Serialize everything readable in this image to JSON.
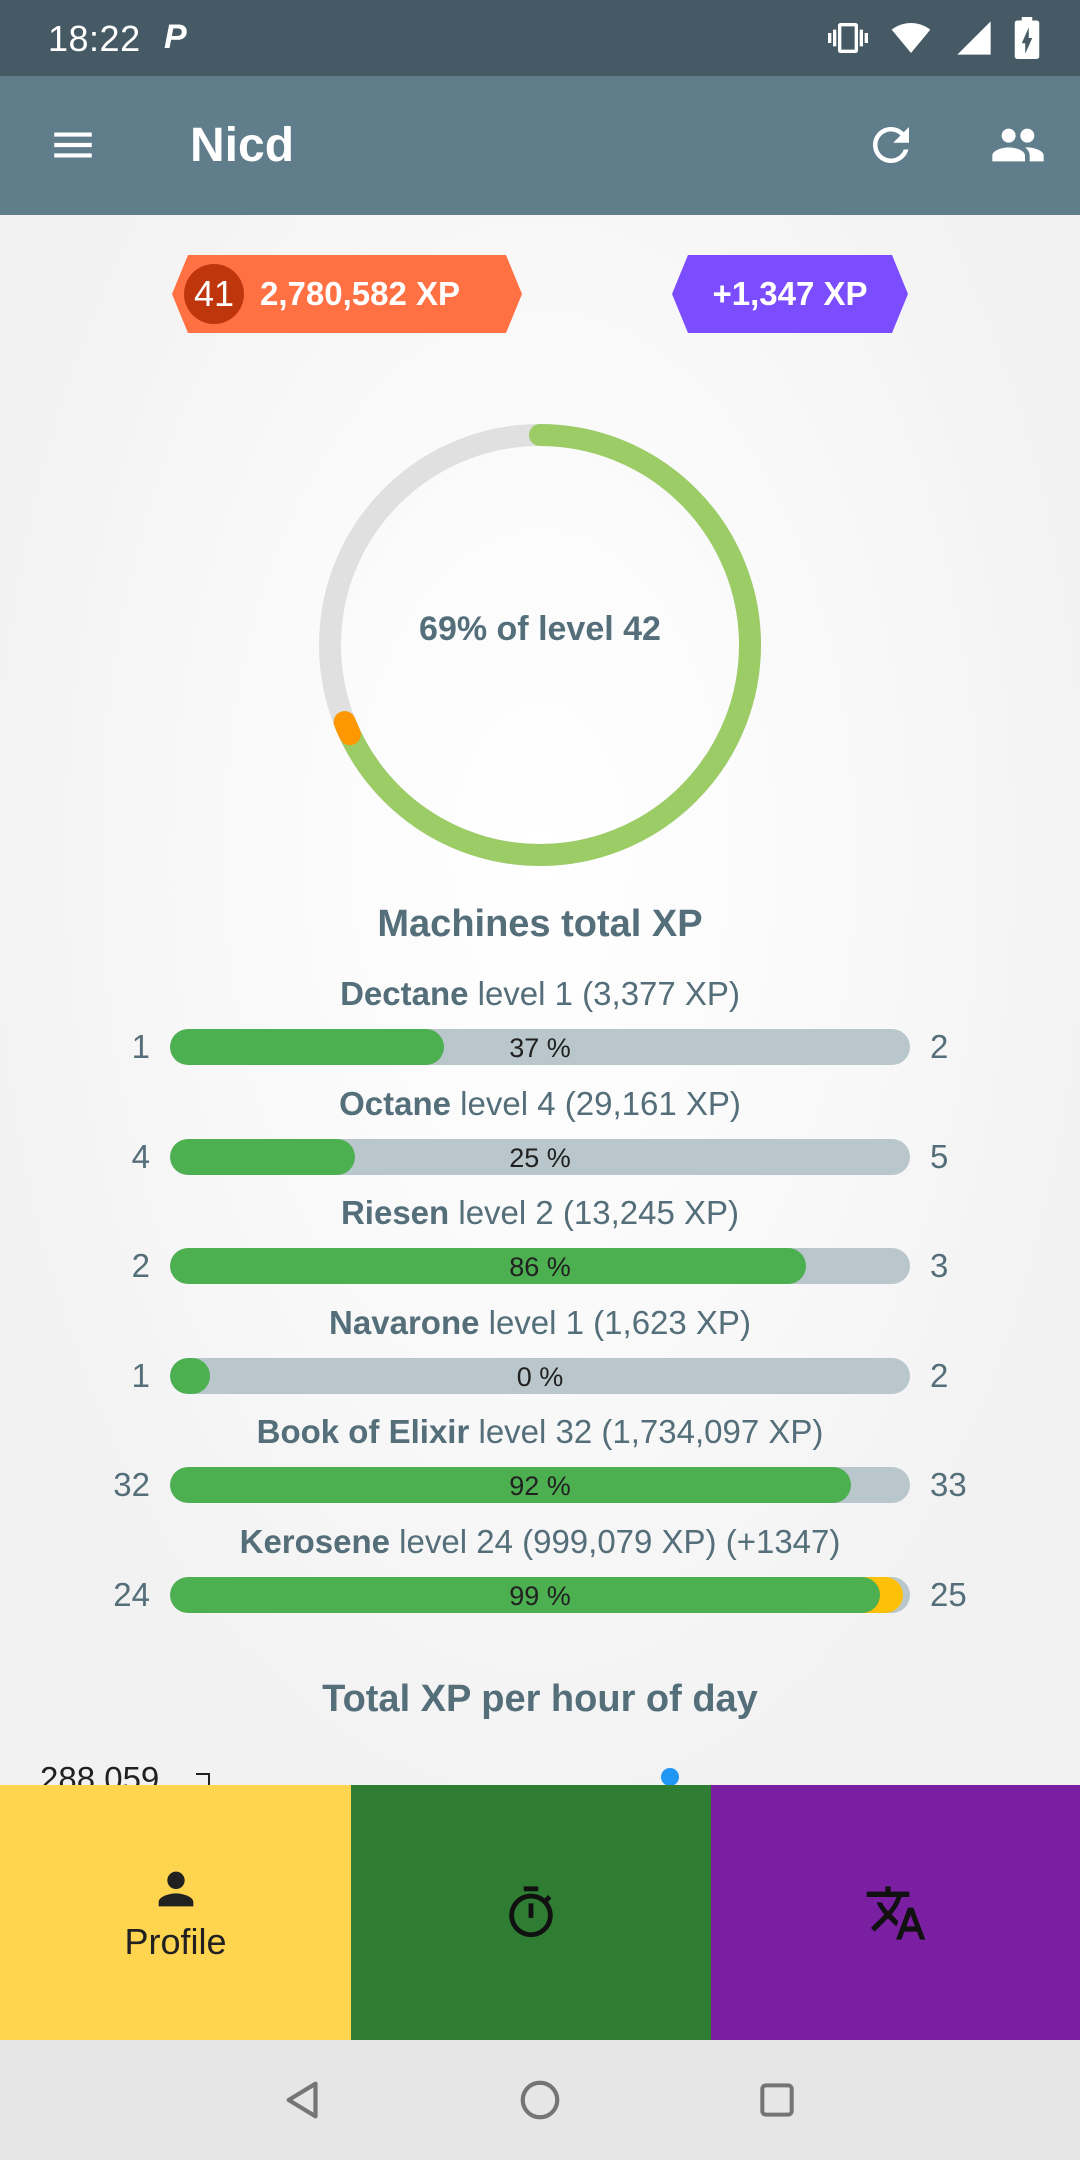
{
  "status_bar": {
    "time": "18:22",
    "notification_icon": "P",
    "icons": [
      "vibrate-icon",
      "wifi-icon",
      "signal-icon",
      "battery-charging-icon"
    ]
  },
  "app_bar": {
    "title": "Nicd",
    "icons": [
      "menu-icon",
      "refresh-icon",
      "people-icon"
    ]
  },
  "xp_summary": {
    "level": "41",
    "total_xp": "2,780,582 XP",
    "gain_xp": "+1,347 XP"
  },
  "progress_ring": {
    "label": "69% of level 42",
    "progress": 0.69,
    "gain_fraction": 0.01
  },
  "machines": {
    "title": "Machines total XP",
    "items": [
      {
        "name": "Dectane",
        "detail": " level 1 (3,377 XP)",
        "from": "1",
        "to": "2",
        "pct_label": "37 %",
        "pct": 37,
        "gain_pct": 0
      },
      {
        "name": "Octane",
        "detail": " level 4 (29,161 XP)",
        "from": "4",
        "to": "5",
        "pct_label": "25 %",
        "pct": 25,
        "gain_pct": 0
      },
      {
        "name": "Riesen",
        "detail": " level 2 (13,245 XP)",
        "from": "2",
        "to": "3",
        "pct_label": "86 %",
        "pct": 86,
        "gain_pct": 0
      },
      {
        "name": "Navarone",
        "detail": " level 1 (1,623 XP)",
        "from": "1",
        "to": "2",
        "pct_label": "0 %",
        "pct": 0,
        "gain_pct": 0
      },
      {
        "name": "Book of Elixir",
        "detail": " level 32 (1,734,097 XP)",
        "from": "32",
        "to": "33",
        "pct_label": "92 %",
        "pct": 92,
        "gain_pct": 0
      },
      {
        "name": "Kerosene",
        "detail": " level 24 (999,079 XP) (+1347)",
        "from": "24",
        "to": "25",
        "pct_label": "99 %",
        "pct": 96,
        "gain_pct": 3
      }
    ]
  },
  "hourly_chart": {
    "title": "Total XP per hour of day",
    "peak_label": "288,059"
  },
  "bottom_nav": {
    "profile_label": "Profile",
    "icons": [
      "person-icon",
      "timer-icon",
      "translate-icon"
    ]
  },
  "colors": {
    "primary": "#607d8b",
    "primary_dark": "#455a64",
    "progress": "#4caf50",
    "gain": "#ffc107",
    "xp_badge": "#ff7043",
    "gain_badge": "#7c4dff"
  }
}
